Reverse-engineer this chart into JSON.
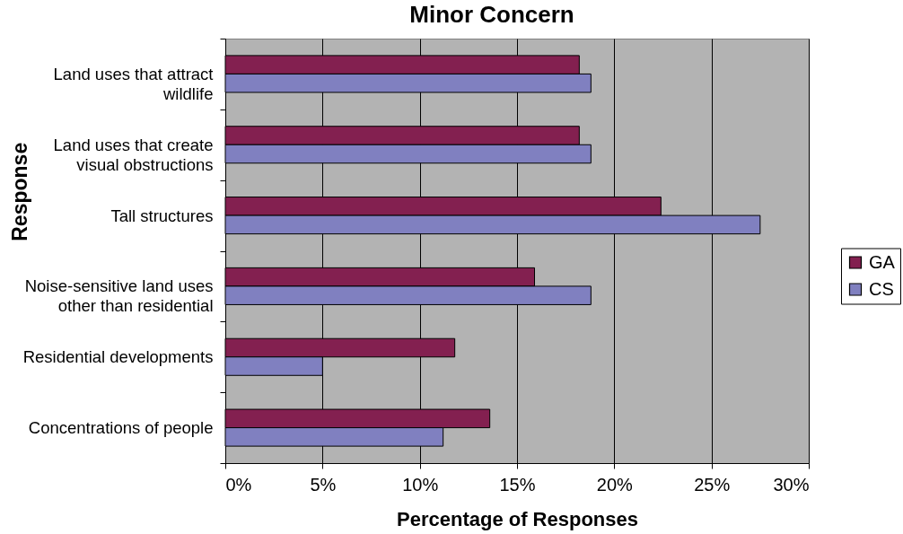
{
  "chart_data": {
    "type": "bar",
    "orientation": "horizontal",
    "title": "Minor Concern",
    "xlabel": "Percentage of Responses",
    "ylabel": "Response",
    "categories": [
      "Land uses that attract wildlife",
      "Land uses that create visual obstructions",
      "Tall structures",
      "Noise-sensitive land uses other than residential",
      "Residential developments",
      "Concentrations of people"
    ],
    "series": [
      {
        "name": "GA",
        "color": "#832050",
        "values": [
          18.2,
          18.2,
          22.4,
          15.9,
          11.8,
          13.6
        ]
      },
      {
        "name": "CS",
        "color": "#8080c0",
        "values": [
          18.8,
          18.8,
          27.5,
          18.8,
          5.0,
          11.2
        ]
      }
    ],
    "xlim": [
      0,
      30
    ],
    "xticks": [
      {
        "value": 0,
        "label": "0%"
      },
      {
        "value": 5,
        "label": "5%"
      },
      {
        "value": 10,
        "label": "10%"
      },
      {
        "value": 15,
        "label": "15%"
      },
      {
        "value": 20,
        "label": "20%"
      },
      {
        "value": 25,
        "label": "25%"
      },
      {
        "value": 30,
        "label": "30%"
      }
    ],
    "grid": "x",
    "legend": "right"
  }
}
